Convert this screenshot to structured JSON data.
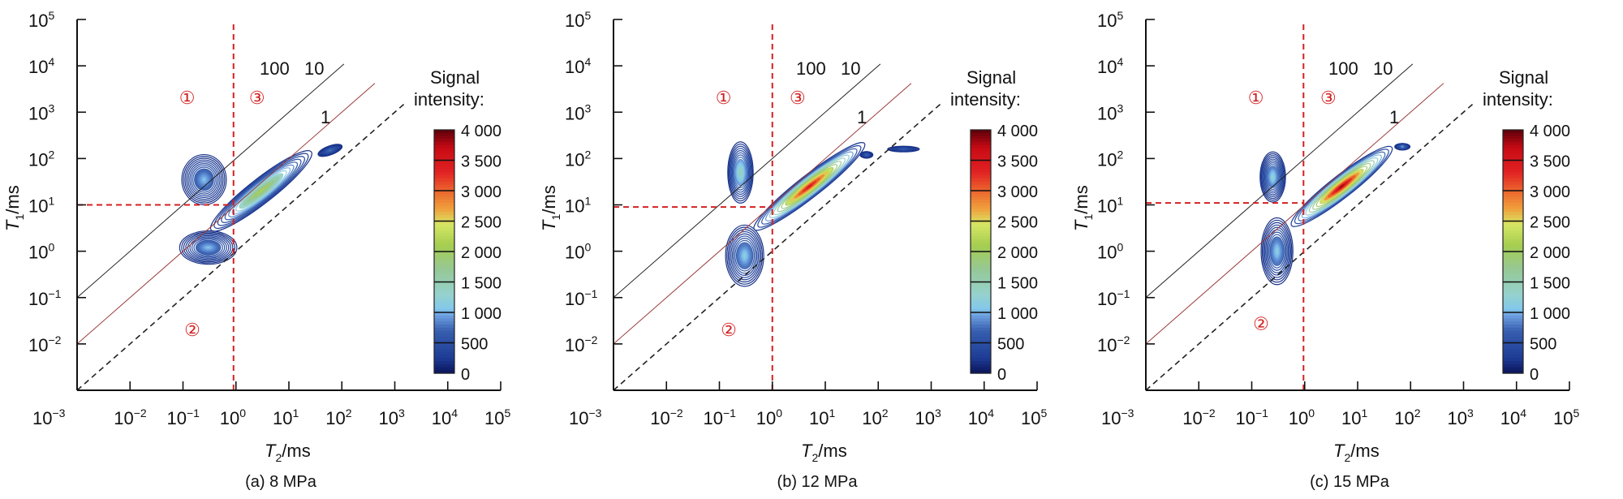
{
  "chart_data": [
    {
      "type": "heatmap",
      "subtype": "2D NMR T1-T2 contour map",
      "caption": "(a) 8 MPa",
      "xlabel": "T2/ms",
      "ylabel": "T1/ms",
      "xscale": "log",
      "yscale": "log",
      "xlim": [
        0.001,
        100000
      ],
      "ylim": [
        0.001,
        100000
      ],
      "x_ticks": [
        "10^-3",
        "10^-2",
        "10^-1",
        "10^0",
        "10^1",
        "10^2",
        "10^3",
        "10^4",
        "10^5"
      ],
      "y_ticks": [
        "10^-2",
        "10^-1",
        "10^0",
        "10^1",
        "10^2",
        "10^3",
        "10^4",
        "10^5"
      ],
      "ratio_lines": [
        {
          "label": "100",
          "t1_over_t2": 100,
          "style": "solid",
          "color": "#222222"
        },
        {
          "label": "10",
          "t1_over_t2": 10,
          "style": "solid",
          "color": "#9b3a3a"
        },
        {
          "label": "1",
          "t1_over_t2": 1,
          "style": "dashed",
          "color": "#222222"
        }
      ],
      "cutoffs": {
        "t2_ms": 0.9,
        "t1_ms": 10,
        "color": "#d42020"
      },
      "regions": [
        {
          "label": "①",
          "t2": 0.12,
          "t1": 1500
        },
        {
          "label": "③",
          "t2": 2.5,
          "t1": 1500
        },
        {
          "label": "②",
          "t2": 0.15,
          "t1": 0.015
        }
      ],
      "colorbar": {
        "title": "Signal intensity:",
        "min": 0,
        "max": 4000,
        "ticks": [
          "4 000",
          "3 500",
          "3 000",
          "2 500",
          "2 000",
          "1 500",
          "1 000",
          "500",
          "0"
        ]
      },
      "peaks": [
        {
          "t2": 0.25,
          "t1": 35,
          "peak_intensity": 1100,
          "spread_t2": 0.35,
          "spread_t1": 0.45,
          "angle": 0
        },
        {
          "t2": 0.3,
          "t1": 1.2,
          "peak_intensity": 1100,
          "spread_t2": 0.45,
          "spread_t1": 0.3,
          "angle": 0
        },
        {
          "t2": 3,
          "t1": 20,
          "peak_intensity": 2200,
          "spread_t2": 1.0,
          "spread_t1": 0.22,
          "angle": 38
        },
        {
          "t2": 60,
          "t1": 150,
          "peak_intensity": 800,
          "spread_t2": 0.2,
          "spread_t1": 0.08,
          "angle": 20
        }
      ]
    },
    {
      "type": "heatmap",
      "subtype": "2D NMR T1-T2 contour map",
      "caption": "(b) 12 MPa",
      "xlabel": "T2/ms",
      "ylabel": "T1/ms",
      "xscale": "log",
      "yscale": "log",
      "xlim": [
        0.001,
        100000
      ],
      "ylim": [
        0.001,
        100000
      ],
      "x_ticks": [
        "10^-3",
        "10^-2",
        "10^-1",
        "10^0",
        "10^1",
        "10^2",
        "10^3",
        "10^4",
        "10^5"
      ],
      "y_ticks": [
        "10^-2",
        "10^-1",
        "10^0",
        "10^1",
        "10^2",
        "10^3",
        "10^4",
        "10^5"
      ],
      "ratio_lines": [
        {
          "label": "100",
          "t1_over_t2": 100,
          "style": "solid",
          "color": "#222222"
        },
        {
          "label": "10",
          "t1_over_t2": 10,
          "style": "solid",
          "color": "#9b3a3a"
        },
        {
          "label": "1",
          "t1_over_t2": 1,
          "style": "dashed",
          "color": "#222222"
        }
      ],
      "cutoffs": {
        "t2_ms": 1,
        "t1_ms": 9,
        "color": "#d42020"
      },
      "regions": [
        {
          "label": "①",
          "t2": 0.12,
          "t1": 1500
        },
        {
          "label": "③",
          "t2": 3,
          "t1": 1500
        },
        {
          "label": "②",
          "t2": 0.15,
          "t1": 0.015
        }
      ],
      "colorbar": {
        "title": "Signal intensity:",
        "min": 0,
        "max": 4000,
        "ticks": [
          "4 000",
          "3 500",
          "3 000",
          "2 500",
          "2 000",
          "1 500",
          "1 000",
          "500",
          "0"
        ]
      },
      "peaks": [
        {
          "t2": 0.25,
          "t1": 50,
          "peak_intensity": 1500,
          "spread_t2": 0.2,
          "spread_t1": 0.55,
          "angle": 0
        },
        {
          "t2": 0.3,
          "t1": 0.8,
          "peak_intensity": 1200,
          "spread_t2": 0.3,
          "spread_t1": 0.55,
          "angle": 0
        },
        {
          "t2": 5,
          "t1": 25,
          "peak_intensity": 3600,
          "spread_t2": 1.1,
          "spread_t1": 0.2,
          "angle": 38
        },
        {
          "t2": 60,
          "t1": 120,
          "peak_intensity": 700,
          "spread_t2": 0.1,
          "spread_t1": 0.06,
          "angle": 0
        },
        {
          "t2": 300,
          "t1": 160,
          "peak_intensity": 600,
          "spread_t2": 0.25,
          "spread_t1": 0.05,
          "angle": 0
        }
      ]
    },
    {
      "type": "heatmap",
      "subtype": "2D NMR T1-T2 contour map",
      "caption": "(c) 15 MPa",
      "xlabel": "T2/ms",
      "ylabel": "T1/ms",
      "xscale": "log",
      "yscale": "log",
      "xlim": [
        0.001,
        100000
      ],
      "ylim": [
        0.001,
        100000
      ],
      "x_ticks": [
        "10^-3",
        "10^-2",
        "10^-1",
        "10^0",
        "10^1",
        "10^2",
        "10^3",
        "10^4",
        "10^5"
      ],
      "y_ticks": [
        "10^-2",
        "10^-1",
        "10^0",
        "10^1",
        "10^2",
        "10^3",
        "10^4",
        "10^5"
      ],
      "ratio_lines": [
        {
          "label": "100",
          "t1_over_t2": 100,
          "style": "solid",
          "color": "#222222"
        },
        {
          "label": "10",
          "t1_over_t2": 10,
          "style": "solid",
          "color": "#9b3a3a"
        },
        {
          "label": "1",
          "t1_over_t2": 1,
          "style": "dashed",
          "color": "#222222"
        }
      ],
      "cutoffs": {
        "t2_ms": 0.95,
        "t1_ms": 11,
        "color": "#d42020"
      },
      "regions": [
        {
          "label": "①",
          "t2": 0.12,
          "t1": 1500
        },
        {
          "label": "③",
          "t2": 2.8,
          "t1": 1500
        },
        {
          "label": "②",
          "t2": 0.15,
          "t1": 0.02
        }
      ],
      "colorbar": {
        "title": "Signal intensity:",
        "min": 0,
        "max": 4000,
        "ticks": [
          "4 000",
          "3 500",
          "3 000",
          "2 500",
          "2 000",
          "1 500",
          "1 000",
          "500",
          "0"
        ]
      },
      "peaks": [
        {
          "t2": 0.25,
          "t1": 40,
          "peak_intensity": 1300,
          "spread_t2": 0.2,
          "spread_t1": 0.45,
          "angle": 0
        },
        {
          "t2": 0.3,
          "t1": 1.0,
          "peak_intensity": 1200,
          "spread_t2": 0.25,
          "spread_t1": 0.6,
          "angle": 0
        },
        {
          "t2": 5,
          "t1": 25,
          "peak_intensity": 3900,
          "spread_t2": 1.0,
          "spread_t1": 0.2,
          "angle": 38
        },
        {
          "t2": 70,
          "t1": 180,
          "peak_intensity": 900,
          "spread_t2": 0.12,
          "spread_t1": 0.06,
          "angle": 0
        }
      ]
    }
  ]
}
